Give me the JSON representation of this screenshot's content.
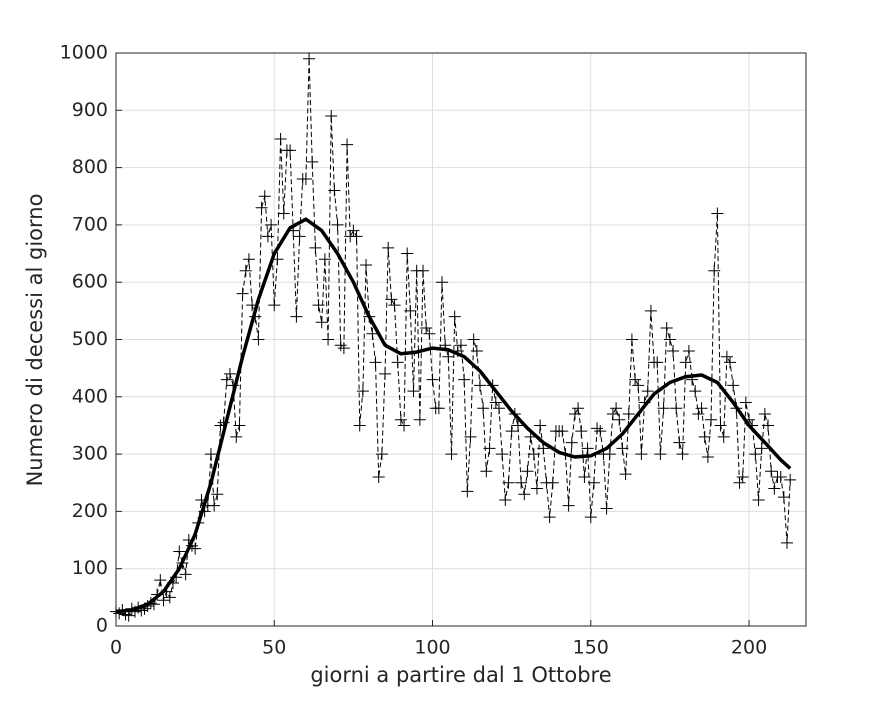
{
  "chart_data": {
    "type": "line",
    "xlabel": "giorni a partire dal 1 Ottobre",
    "ylabel": "Numero di decessi al giorno",
    "xlim": [
      0,
      218
    ],
    "ylim": [
      0,
      1000
    ],
    "xticks": [
      0,
      50,
      100,
      150,
      200
    ],
    "yticks": [
      0,
      100,
      200,
      300,
      400,
      500,
      600,
      700,
      800,
      900,
      1000
    ],
    "grid": true,
    "series": [
      {
        "style": "dashed-plus",
        "color": "#000000",
        "x": [
          0,
          1,
          2,
          3,
          4,
          5,
          6,
          7,
          8,
          9,
          10,
          11,
          12,
          13,
          14,
          15,
          16,
          17,
          18,
          19,
          20,
          21,
          22,
          23,
          24,
          25,
          26,
          27,
          28,
          29,
          30,
          31,
          32,
          33,
          34,
          35,
          36,
          37,
          38,
          39,
          40,
          41,
          42,
          43,
          44,
          45,
          46,
          47,
          48,
          49,
          50,
          51,
          52,
          53,
          54,
          55,
          56,
          57,
          58,
          59,
          60,
          61,
          62,
          63,
          64,
          65,
          66,
          67,
          68,
          69,
          70,
          71,
          72,
          73,
          74,
          75,
          76,
          77,
          78,
          79,
          80,
          81,
          82,
          83,
          84,
          85,
          86,
          87,
          88,
          89,
          90,
          91,
          92,
          93,
          94,
          95,
          96,
          97,
          98,
          99,
          100,
          101,
          102,
          103,
          104,
          105,
          106,
          107,
          108,
          109,
          110,
          111,
          112,
          113,
          114,
          115,
          116,
          117,
          118,
          119,
          120,
          121,
          122,
          123,
          124,
          125,
          126,
          127,
          128,
          129,
          130,
          131,
          132,
          133,
          134,
          135,
          136,
          137,
          138,
          139,
          140,
          141,
          142,
          143,
          144,
          145,
          146,
          147,
          148,
          149,
          150,
          151,
          152,
          153,
          154,
          155,
          156,
          157,
          158,
          159,
          160,
          161,
          162,
          163,
          164,
          165,
          166,
          167,
          168,
          169,
          170,
          171,
          172,
          173,
          174,
          175,
          176,
          177,
          178,
          179,
          180,
          181,
          182,
          183,
          184,
          185,
          186,
          187,
          188,
          189,
          190,
          191,
          192,
          193,
          194,
          195,
          196,
          197,
          198,
          199,
          200,
          201,
          202,
          203,
          204,
          205,
          206,
          207,
          208,
          209,
          210,
          211,
          212,
          213
        ],
        "values": [
          25,
          22,
          28,
          20,
          18,
          30,
          25,
          32,
          27,
          30,
          35,
          40,
          38,
          55,
          80,
          45,
          60,
          50,
          75,
          85,
          130,
          110,
          90,
          150,
          140,
          135,
          180,
          220,
          200,
          210,
          300,
          210,
          230,
          350,
          355,
          430,
          440,
          420,
          330,
          350,
          580,
          620,
          640,
          560,
          540,
          500,
          730,
          750,
          680,
          700,
          560,
          640,
          850,
          720,
          830,
          830,
          690,
          540,
          680,
          780,
          780,
          990,
          810,
          660,
          560,
          530,
          640,
          500,
          890,
          760,
          700,
          490,
          485,
          840,
          680,
          690,
          680,
          350,
          410,
          630,
          540,
          510,
          460,
          260,
          300,
          440,
          660,
          570,
          560,
          460,
          360,
          350,
          650,
          550,
          410,
          620,
          360,
          620,
          520,
          510,
          430,
          380,
          380,
          600,
          490,
          470,
          300,
          540,
          480,
          490,
          430,
          235,
          330,
          500,
          480,
          420,
          380,
          270,
          310,
          420,
          390,
          380,
          300,
          220,
          250,
          340,
          370,
          350,
          250,
          230,
          270,
          330,
          300,
          240,
          350,
          310,
          250,
          190,
          250,
          340,
          340,
          340,
          300,
          210,
          320,
          370,
          380,
          340,
          260,
          310,
          190,
          250,
          345,
          340,
          300,
          205,
          300,
          370,
          380,
          360,
          310,
          265,
          370,
          500,
          430,
          420,
          300,
          390,
          410,
          550,
          460,
          460,
          300,
          380,
          520,
          500,
          480,
          380,
          320,
          300,
          460,
          480,
          430,
          410,
          370,
          380,
          330,
          295,
          360,
          620,
          720,
          350,
          330,
          470,
          460,
          420,
          380,
          250,
          260,
          390,
          360,
          350,
          300,
          220,
          310,
          370,
          350,
          270,
          240,
          260,
          260,
          225,
          145,
          255
        ]
      },
      {
        "style": "solid",
        "color": "#000000",
        "x": [
          0,
          5,
          10,
          15,
          20,
          25,
          30,
          35,
          40,
          45,
          50,
          55,
          60,
          65,
          70,
          75,
          80,
          85,
          90,
          95,
          100,
          105,
          110,
          115,
          120,
          125,
          130,
          135,
          140,
          145,
          150,
          155,
          160,
          165,
          170,
          175,
          180,
          185,
          190,
          195,
          200,
          205,
          210,
          213
        ],
        "values": [
          25,
          28,
          38,
          60,
          100,
          160,
          250,
          360,
          470,
          570,
          650,
          695,
          710,
          690,
          650,
          600,
          540,
          490,
          475,
          478,
          485,
          482,
          470,
          445,
          410,
          375,
          345,
          320,
          303,
          295,
          297,
          310,
          335,
          370,
          405,
          425,
          435,
          438,
          425,
          390,
          350,
          320,
          290,
          275
        ]
      }
    ]
  }
}
